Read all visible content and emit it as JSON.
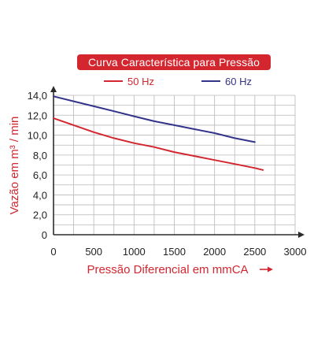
{
  "chart_data": {
    "type": "line",
    "title": "Curva Característica para Pressão",
    "xlabel": "Pressão Diferencial em mmCA",
    "ylabel": "Vazão em m³ / min",
    "xlim": [
      0,
      3000
    ],
    "ylim": [
      0,
      14
    ],
    "xticks": [
      0,
      500,
      1000,
      1500,
      2000,
      2500,
      3000
    ],
    "xtick_labels": [
      "0",
      "500",
      "1000",
      "1500",
      "2000",
      "2500",
      "3000"
    ],
    "yticks": [
      0,
      2,
      4,
      6,
      8,
      10,
      12,
      14
    ],
    "ytick_labels": [
      "0",
      "2,0",
      "4,0",
      "6,0",
      "8,0",
      "10,0",
      "12,0",
      "14,0"
    ],
    "grid": true,
    "legend_position": "top-center",
    "series": [
      {
        "name": "50 Hz",
        "color": "#d3262f",
        "x": [
          0,
          250,
          500,
          750,
          1000,
          1250,
          1500,
          1750,
          2000,
          2250,
          2500,
          2600
        ],
        "y": [
          11.7,
          11.0,
          10.3,
          9.7,
          9.2,
          8.8,
          8.3,
          7.9,
          7.5,
          7.1,
          6.7,
          6.5
        ]
      },
      {
        "name": "60 Hz",
        "color": "#33338a",
        "x": [
          0,
          250,
          500,
          750,
          1000,
          1250,
          1500,
          1750,
          2000,
          2250,
          2500
        ],
        "y": [
          13.9,
          13.4,
          12.9,
          12.4,
          11.9,
          11.4,
          11.0,
          10.6,
          10.2,
          9.7,
          9.3
        ]
      }
    ]
  },
  "colors": {
    "accent_red": "#d3262f",
    "series_blue": "#33338a",
    "grid": "#b8b8b8",
    "axis": "#2b2b2b"
  }
}
